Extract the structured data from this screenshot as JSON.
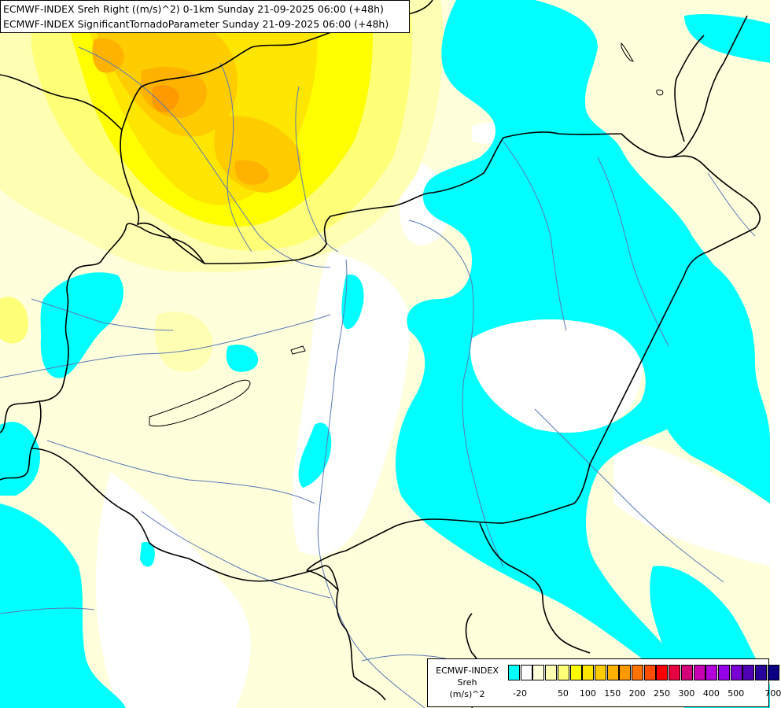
{
  "header": {
    "line1": "ECMWF-INDEX Sreh Right ((m/s)^2) 0-1km Sunday 21-09-2025 06:00 (+48h)",
    "line2": "ECMWF-INDEX SignificantTornadoParameter Sunday 21-09-2025 06:00 (+48h)"
  },
  "legend": {
    "line1": "ECMWF-INDEX",
    "line2": "Sreh",
    "line3": "(m/s)^2",
    "colors": [
      "#00ffff",
      "#ffffff",
      "#ffffdc",
      "#ffffb4",
      "#ffff78",
      "#ffff00",
      "#ffe600",
      "#ffcc00",
      "#ffb300",
      "#ff9900",
      "#ff7300",
      "#ff4d00",
      "#ff0000",
      "#e60040",
      "#d4007a",
      "#c800b4",
      "#b400dc",
      "#9600e6",
      "#7800d2",
      "#5000b4",
      "#28009b",
      "#0a0082"
    ],
    "ticks": [
      "-20",
      "50",
      "100",
      "150",
      "200",
      "250",
      "300",
      "400",
      "500",
      "700"
    ]
  },
  "map": {
    "region": "Central Europe",
    "colors": {
      "cyan": "#00ffff",
      "pale_yellow": "#ffffdc",
      "light_yellow": "#ffffb4",
      "yellow": "#ffff78",
      "gold": "#ffff00",
      "amber": "#ffe600",
      "orange": "#ffb300",
      "dark_orange": "#ff9900",
      "border": "#000000",
      "river": "#5a78b4"
    }
  }
}
